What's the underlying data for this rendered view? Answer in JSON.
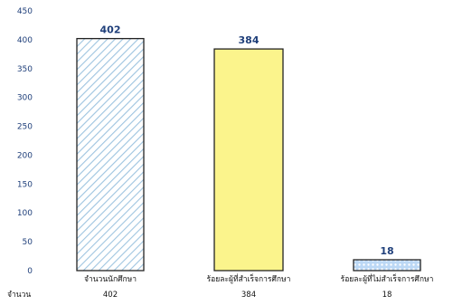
{
  "chart_data": {
    "type": "bar",
    "categories": [
      "จำนวนนักศึกษา",
      "ร้อยละผู้ที่สำเร็จการศึกษา",
      "ร้อยละผู้ที่ไม่สำเร็จการศึกษา"
    ],
    "values": [
      402,
      384,
      18
    ],
    "ylim": [
      0,
      450
    ],
    "yticks": [
      0,
      50,
      100,
      150,
      200,
      250,
      300,
      350,
      400,
      450
    ],
    "grid": false,
    "data_labels": [
      "402",
      "384",
      "18"
    ],
    "table": {
      "row_label": "จำนวน",
      "cells": [
        "402",
        "384",
        "18"
      ]
    },
    "bar_styles": [
      {
        "fill": "#ffffff",
        "pattern": "diagonal-stripes",
        "pattern_color": "#9ec4e0"
      },
      {
        "fill": "#fbf48c",
        "pattern": "none"
      },
      {
        "fill": "#bcd8f5",
        "pattern": "dots",
        "pattern_color": "#ffffff"
      }
    ],
    "colors": {
      "axis_text": "#1f3f7a",
      "bar_stroke": "#222222"
    }
  }
}
